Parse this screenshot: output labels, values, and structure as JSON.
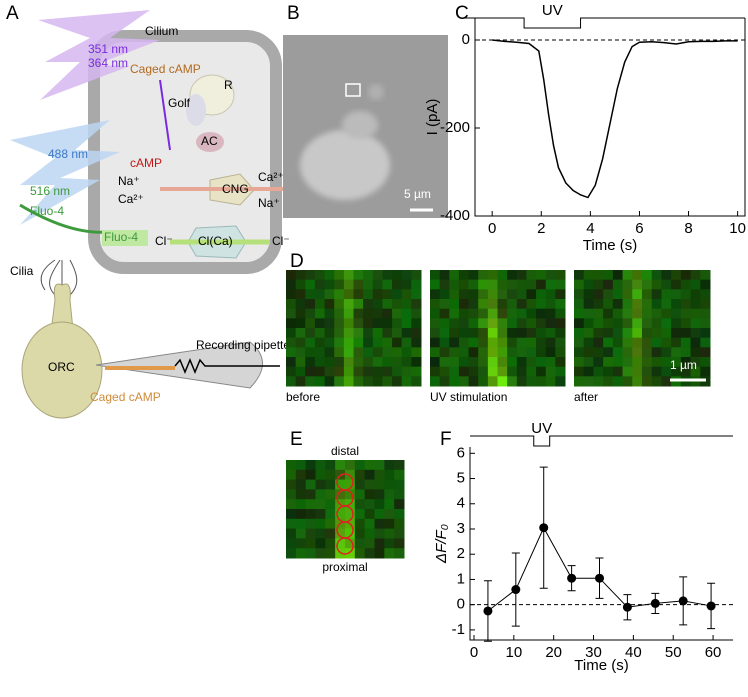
{
  "panel_labels": [
    "A",
    "B",
    "C",
    "D",
    "E",
    "F"
  ],
  "diagram": {
    "uv_light": [
      "351 nm",
      "364 nm"
    ],
    "cilium": "Cilium",
    "caged_camp": "Caged cAMP",
    "r": "R",
    "golf": "Golf",
    "ac": "AC",
    "blue_light": "488 nm",
    "camp": "cAMP",
    "na_in": "Na⁺",
    "ca_in": "Ca²⁺",
    "cng": "CNG",
    "ca_out": "Ca²⁺",
    "na_out": "Na⁺",
    "emission": "516 nm",
    "fluo4_out": "Fluo-4",
    "fluo4_in": "Fluo-4",
    "cl_in": "Cl⁻",
    "clca": "Cl(Ca)",
    "cl_out": "Cl⁻",
    "cilia": "Cilia",
    "pipette": "Recording pipette",
    "orc": "ORC",
    "caged_camp_pipette": "Caged cAMP"
  },
  "micrograph": {
    "scale": "5 µm"
  },
  "images": {
    "labels": [
      "before",
      "UV stimulation",
      "after"
    ],
    "scale": "1 µm"
  },
  "roi": {
    "top": "distal",
    "bottom": "proximal"
  },
  "chart_data": [
    {
      "type": "line",
      "x": [
        0,
        0.5,
        1,
        1.5,
        1.9,
        2.1,
        2.3,
        2.5,
        2.7,
        3,
        3.3,
        3.6,
        3.9,
        4.2,
        4.5,
        4.8,
        5.1,
        5.4,
        5.7,
        6,
        6.5,
        7,
        7.5,
        8,
        8.5,
        9,
        9.5,
        10
      ],
      "values": [
        0,
        -3,
        -5,
        -8,
        -25,
        -90,
        -170,
        -240,
        -290,
        -325,
        -342,
        -352,
        -358,
        -330,
        -270,
        -190,
        -110,
        -50,
        -15,
        -5,
        -4,
        -6,
        -9,
        -4,
        -3,
        -3,
        -2,
        -2
      ],
      "color": "#000000",
      "xlabel": "Time (s)",
      "ylabel": "I (pA)",
      "xlim": [
        -0.7,
        10.3
      ],
      "ylim": [
        -400,
        50
      ],
      "xticks": [
        0,
        2,
        4,
        6,
        8,
        10
      ],
      "yticks": [
        -400,
        -200,
        0
      ],
      "baseline": 0,
      "stimulus": {
        "label": "UV",
        "start": 1.3,
        "end": 3.6
      }
    },
    {
      "type": "scatter",
      "x": [
        3.5,
        10.5,
        17.5,
        24.5,
        31.5,
        38.5,
        45.5,
        52.5,
        59.5
      ],
      "values": [
        -0.25,
        0.6,
        3.05,
        1.05,
        1.05,
        -0.1,
        0.05,
        0.15,
        -0.05
      ],
      "errors": [
        1.2,
        1.45,
        2.4,
        0.5,
        0.8,
        0.5,
        0.4,
        0.95,
        0.9
      ],
      "color": "#000000",
      "xlabel": "Time (s)",
      "ylabel": "ΔF/F₀",
      "xlim": [
        -1,
        65
      ],
      "ylim": [
        -1.4,
        6.25
      ],
      "xticks": [
        0,
        10,
        20,
        30,
        40,
        50,
        60
      ],
      "yticks": [
        -1,
        0,
        1,
        2,
        3,
        4,
        5,
        6
      ],
      "baseline": 0,
      "stimulus": {
        "label": "UV",
        "start": 15,
        "end": 19
      }
    }
  ]
}
